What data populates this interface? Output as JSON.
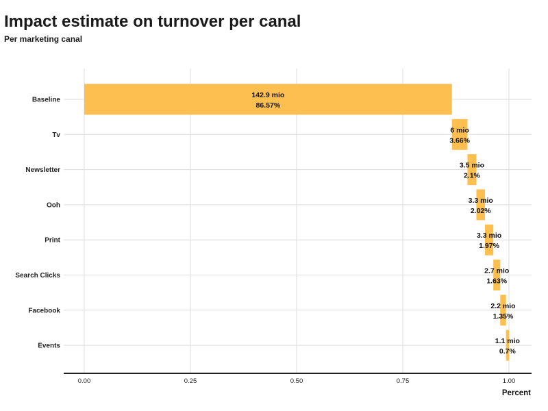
{
  "header": {
    "title": "Impact estimate on turnover per canal",
    "subtitle": "Per marketing canal"
  },
  "colors": {
    "bar": "#FDBF4F",
    "grid": "#DDDDDD",
    "axis": "#222222"
  },
  "chart_data": {
    "type": "bar",
    "orientation": "horizontal-waterfall",
    "title": "Impact estimate on turnover per canal",
    "subtitle": "Per marketing canal",
    "xlabel": "Percent",
    "ylabel": "",
    "xlim": [
      0,
      1
    ],
    "xticks": [
      "0.00",
      "0.25",
      "0.50",
      "0.75",
      "1.00"
    ],
    "grid": true,
    "categories": [
      "Baseline",
      "Tv",
      "Newsletter",
      "Ooh",
      "Print",
      "Search Clicks",
      "Facebook",
      "Events"
    ],
    "values": [
      0.8657,
      0.0366,
      0.021,
      0.0202,
      0.0197,
      0.0163,
      0.0135,
      0.007
    ],
    "value_labels": [
      "142.9 mio",
      "6 mio",
      "3.5 mio",
      "3.3 mio",
      "3.3 mio",
      "2.7 mio",
      "2.2 mio",
      "1.1 mio"
    ],
    "percent_labels": [
      "86.57%",
      "3.66%",
      "2.1%",
      "2.02%",
      "1.97%",
      "1.63%",
      "1.35%",
      "0.7%"
    ]
  }
}
